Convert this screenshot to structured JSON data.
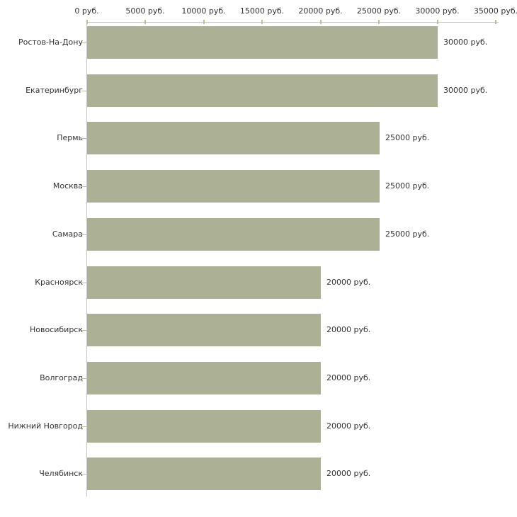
{
  "chart_data": {
    "type": "bar",
    "orientation": "horizontal",
    "title": "",
    "xlabel": "",
    "ylabel": "",
    "unit": "руб.",
    "categories": [
      "Ростов-На-Дону",
      "Екатеринбург",
      "Пермь",
      "Москва",
      "Самара",
      "Красноярск",
      "Новосибирск",
      "Волгоград",
      "Нижний Новгород",
      "Челябинск"
    ],
    "values": [
      30000,
      30000,
      25000,
      25000,
      25000,
      20000,
      20000,
      20000,
      20000,
      20000
    ],
    "value_labels": [
      "30000 руб.",
      "30000 руб.",
      "25000 руб.",
      "25000 руб.",
      "25000 руб.",
      "20000 руб.",
      "20000 руб.",
      "20000 руб.",
      "20000 руб.",
      "20000 руб."
    ],
    "xlim": [
      0,
      35000
    ],
    "x_ticks": [
      0,
      5000,
      10000,
      15000,
      20000,
      25000,
      30000,
      35000
    ],
    "x_tick_labels": [
      "0 руб.",
      "5000 руб.",
      "10000 руб.",
      "15000 руб.",
      "20000 руб.",
      "25000 руб.",
      "30000 руб.",
      "35000 руб."
    ],
    "grid": false,
    "legend": false,
    "axis_position": "top",
    "colors": {
      "bar": "#acb196",
      "axis_line": "#c7c7c7",
      "tick_mark": "#bfbe96",
      "text": "#333333",
      "background": "#ffffff"
    }
  }
}
